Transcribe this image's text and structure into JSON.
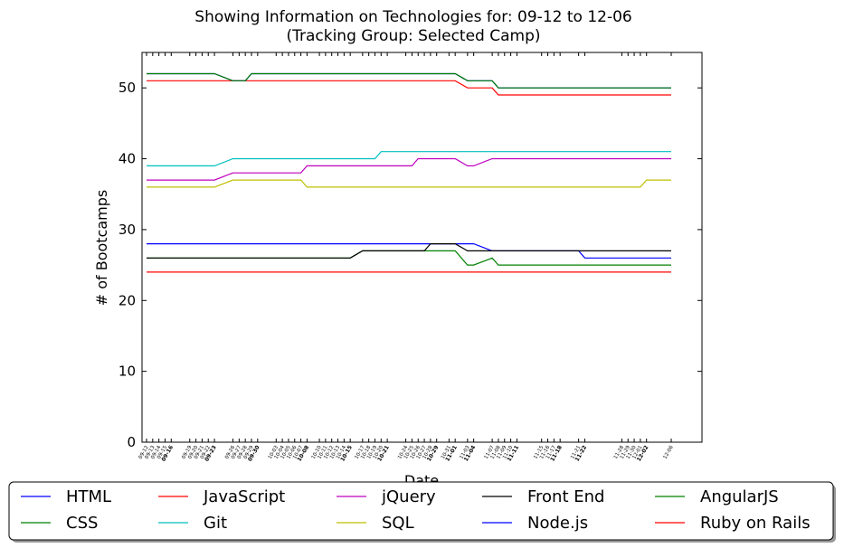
{
  "chart_data": {
    "type": "line",
    "title": "Showing Information on Technologies for: 09-12 to 12-06",
    "subtitle": "(Tracking Group: Selected Camp)",
    "xlabel": "Date",
    "ylabel": "# of Bootcamps",
    "ylim": [
      0,
      55
    ],
    "yticks": [
      0,
      10,
      20,
      30,
      40,
      50
    ],
    "grid": false,
    "legend_position": "bottom",
    "x": [
      "09-12",
      "09-13",
      "09-14",
      "09-15",
      "09-16",
      "09-19",
      "09-20",
      "09-21",
      "09-22",
      "09-23",
      "09-26",
      "09-27",
      "09-28",
      "09-29",
      "09-30",
      "10-03",
      "10-04",
      "10-05",
      "10-06",
      "10-07",
      "10-08",
      "10-10",
      "10-11",
      "10-12",
      "10-13",
      "10-14",
      "10-15",
      "10-17",
      "10-18",
      "10-19",
      "10-20",
      "10-21",
      "10-24",
      "10-25",
      "10-26",
      "10-27",
      "10-28",
      "10-29",
      "10-31",
      "11-01",
      "11-03",
      "11-04",
      "11-07",
      "11-08",
      "11-09",
      "11-10",
      "11-11",
      "11-15",
      "11-16",
      "11-17",
      "11-18",
      "11-21",
      "11-22",
      "11-28",
      "11-29",
      "11-30",
      "12-01",
      "12-02",
      "12-06"
    ],
    "bold_ticks": [
      "09-16",
      "09-23",
      "09-30",
      "10-08",
      "10-15",
      "10-21",
      "10-29",
      "11-01",
      "11-04",
      "11-11",
      "11-18",
      "11-22",
      "12-02"
    ],
    "series": [
      {
        "name": "HTML",
        "color": "#0000ff",
        "values": [
          28,
          28,
          28,
          28,
          28,
          28,
          28,
          28,
          28,
          28,
          28,
          28,
          28,
          28,
          28,
          28,
          28,
          28,
          28,
          28,
          28,
          28,
          28,
          28,
          28,
          28,
          28,
          28,
          28,
          28,
          28,
          28,
          28,
          28,
          28,
          28,
          28,
          28,
          28,
          28,
          28,
          28,
          27,
          27,
          27,
          27,
          27,
          27,
          27,
          27,
          27,
          27,
          26,
          26,
          26,
          26,
          26,
          26,
          26
        ]
      },
      {
        "name": "CSS",
        "color": "#008000",
        "values": [
          26,
          26,
          26,
          26,
          26,
          26,
          26,
          26,
          26,
          26,
          26,
          26,
          26,
          26,
          26,
          26,
          26,
          26,
          26,
          26,
          26,
          26,
          26,
          26,
          26,
          26,
          26,
          27,
          27,
          27,
          27,
          27,
          27,
          27,
          27,
          27,
          27,
          27,
          27,
          27,
          25,
          25,
          26,
          25,
          25,
          25,
          25,
          25,
          25,
          25,
          25,
          25,
          25,
          25,
          25,
          25,
          25,
          25,
          25
        ]
      },
      {
        "name": "JavaScript",
        "color": "#ff0000",
        "values": [
          51,
          51,
          51,
          51,
          51,
          51,
          51,
          51,
          51,
          51,
          51,
          51,
          51,
          51,
          51,
          51,
          51,
          51,
          51,
          51,
          51,
          51,
          51,
          51,
          51,
          51,
          51,
          51,
          51,
          51,
          51,
          51,
          51,
          51,
          51,
          51,
          51,
          51,
          51,
          51,
          50,
          50,
          50,
          49,
          49,
          49,
          49,
          49,
          49,
          49,
          49,
          49,
          49,
          49,
          49,
          49,
          49,
          49,
          49
        ]
      },
      {
        "name": "Git",
        "color": "#00bfbf",
        "values": [
          39,
          39,
          39,
          39,
          39,
          39,
          39,
          39,
          39,
          39,
          40,
          40,
          40,
          40,
          40,
          40,
          40,
          40,
          40,
          40,
          40,
          40,
          40,
          40,
          40,
          40,
          40,
          40,
          40,
          40,
          41,
          41,
          41,
          41,
          41,
          41,
          41,
          41,
          41,
          41,
          41,
          41,
          41,
          41,
          41,
          41,
          41,
          41,
          41,
          41,
          41,
          41,
          41,
          41,
          41,
          41,
          41,
          41,
          41
        ]
      },
      {
        "name": "jQuery",
        "color": "#bf00bf",
        "values": [
          37,
          37,
          37,
          37,
          37,
          37,
          37,
          37,
          37,
          37,
          38,
          38,
          38,
          38,
          38,
          38,
          38,
          38,
          38,
          38,
          39,
          39,
          39,
          39,
          39,
          39,
          39,
          39,
          39,
          39,
          39,
          39,
          39,
          39,
          40,
          40,
          40,
          40,
          40,
          40,
          39,
          39,
          40,
          40,
          40,
          40,
          40,
          40,
          40,
          40,
          40,
          40,
          40,
          40,
          40,
          40,
          40,
          40,
          40
        ]
      },
      {
        "name": "SQL",
        "color": "#bfbf00",
        "values": [
          36,
          36,
          36,
          36,
          36,
          36,
          36,
          36,
          36,
          36,
          37,
          37,
          37,
          37,
          37,
          37,
          37,
          37,
          37,
          37,
          36,
          36,
          36,
          36,
          36,
          36,
          36,
          36,
          36,
          36,
          36,
          36,
          36,
          36,
          36,
          36,
          36,
          36,
          36,
          36,
          36,
          36,
          36,
          36,
          36,
          36,
          36,
          36,
          36,
          36,
          36,
          36,
          36,
          36,
          36,
          36,
          36,
          37,
          37
        ]
      },
      {
        "name": "Front End",
        "color": "#000000",
        "values": [
          26,
          26,
          26,
          26,
          26,
          26,
          26,
          26,
          26,
          26,
          26,
          26,
          26,
          26,
          26,
          26,
          26,
          26,
          26,
          26,
          26,
          26,
          26,
          26,
          26,
          26,
          26,
          27,
          27,
          27,
          27,
          27,
          27,
          27,
          27,
          27,
          28,
          28,
          28,
          28,
          27,
          27,
          27,
          27,
          27,
          27,
          27,
          27,
          27,
          27,
          27,
          27,
          27,
          27,
          27,
          27,
          27,
          27,
          27
        ]
      },
      {
        "name": "Node.js",
        "color": "#0000ff",
        "values": [
          52,
          52,
          52,
          52,
          52,
          52,
          52,
          52,
          52,
          52,
          51,
          51,
          51,
          52,
          52,
          52,
          52,
          52,
          52,
          52,
          52,
          52,
          52,
          52,
          52,
          52,
          52,
          52,
          52,
          52,
          52,
          52,
          52,
          52,
          52,
          52,
          52,
          52,
          52,
          52,
          51,
          51,
          51,
          50,
          50,
          50,
          50,
          50,
          50,
          50,
          50,
          50,
          50,
          50,
          50,
          50,
          50,
          50,
          50
        ]
      },
      {
        "name": "AngularJS",
        "color": "#008000",
        "values": [
          52,
          52,
          52,
          52,
          52,
          52,
          52,
          52,
          52,
          52,
          51,
          51,
          51,
          52,
          52,
          52,
          52,
          52,
          52,
          52,
          52,
          52,
          52,
          52,
          52,
          52,
          52,
          52,
          52,
          52,
          52,
          52,
          52,
          52,
          52,
          52,
          52,
          52,
          52,
          52,
          51,
          51,
          51,
          50,
          50,
          50,
          50,
          50,
          50,
          50,
          50,
          50,
          50,
          50,
          50,
          50,
          50,
          50,
          50
        ]
      },
      {
        "name": "Ruby on Rails",
        "color": "#ff0000",
        "values": [
          24,
          24,
          24,
          24,
          24,
          24,
          24,
          24,
          24,
          24,
          24,
          24,
          24,
          24,
          24,
          24,
          24,
          24,
          24,
          24,
          24,
          24,
          24,
          24,
          24,
          24,
          24,
          24,
          24,
          24,
          24,
          24,
          24,
          24,
          24,
          24,
          24,
          24,
          24,
          24,
          24,
          24,
          24,
          24,
          24,
          24,
          24,
          24,
          24,
          24,
          24,
          24,
          24,
          24,
          24,
          24,
          24,
          24,
          24
        ]
      }
    ],
    "legend_order": [
      "HTML",
      "JavaScript",
      "jQuery",
      "Front End",
      "AngularJS",
      "CSS",
      "Git",
      "SQL",
      "Node.js",
      "Ruby on Rails"
    ]
  }
}
